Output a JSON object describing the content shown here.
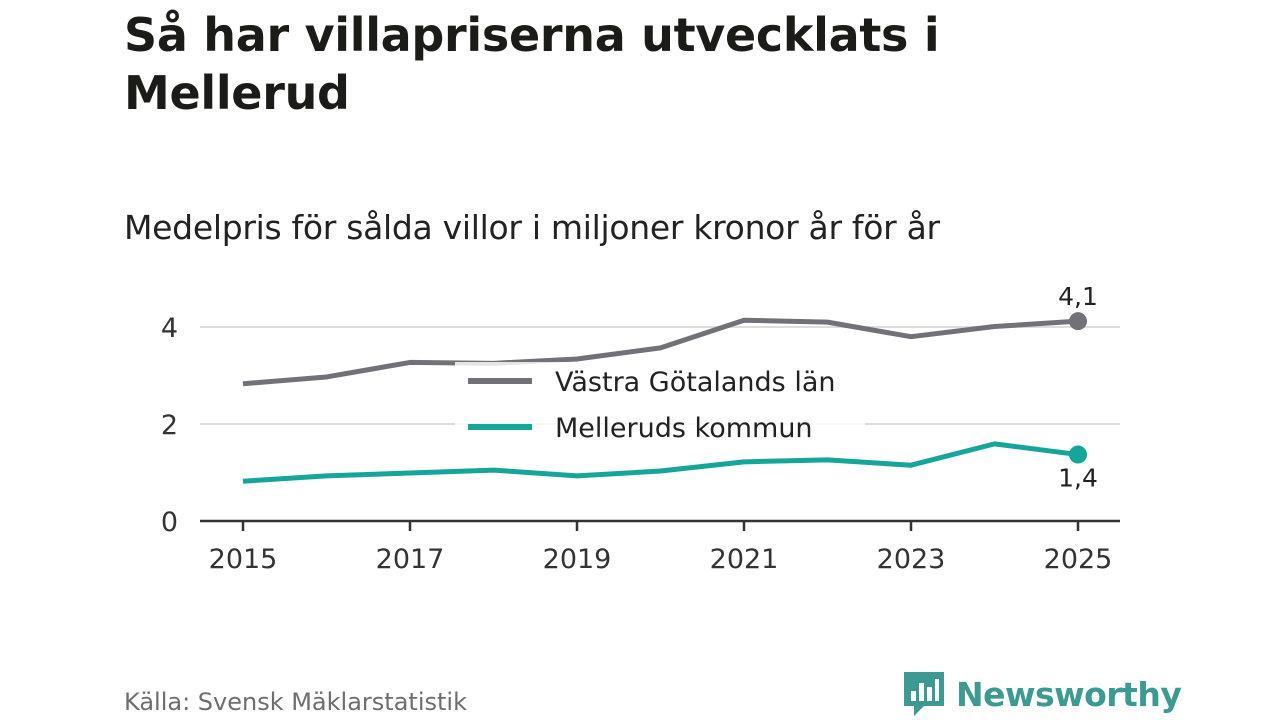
{
  "title": "Så har villapriserna utvecklats i Mellerud",
  "subtitle": "Medelpris för sålda villor i miljoner kronor år för år",
  "source": "Källa: Svensk Mäklarstatistik",
  "brand": "Newsworthy",
  "colors": {
    "vastra": "#727177",
    "mellerud": "#16a59a",
    "grid": "#dddddd",
    "axis": "#333333",
    "brand": "#3d9a92"
  },
  "chart_data": {
    "type": "line",
    "title": "Så har villapriserna utvecklats i Mellerud",
    "subtitle": "Medelpris för sålda villor i miljoner kronor år för år",
    "xlabel": "",
    "ylabel": "",
    "x": [
      2015,
      2016,
      2017,
      2018,
      2019,
      2020,
      2021,
      2022,
      2023,
      2024,
      2025
    ],
    "xticks": [
      2015,
      2017,
      2019,
      2021,
      2023,
      2025
    ],
    "xtick_labels": [
      "2015",
      "2017",
      "2019",
      "2021",
      "2023",
      "2025"
    ],
    "xlim": [
      2015,
      2025
    ],
    "ylim": [
      0,
      4.5
    ],
    "yticks": [
      0,
      2,
      4
    ],
    "ytick_labels": [
      "0",
      "2",
      "4"
    ],
    "grid": true,
    "legend_position": "center",
    "series": [
      {
        "name": "Västra Götalands län",
        "values": [
          2.83,
          2.97,
          3.27,
          3.25,
          3.34,
          3.57,
          4.14,
          4.1,
          3.8,
          4.01,
          4.12
        ],
        "end_label": "4,1"
      },
      {
        "name": "Melleruds kommun",
        "values": [
          0.82,
          0.93,
          0.99,
          1.05,
          0.93,
          1.03,
          1.22,
          1.26,
          1.15,
          1.59,
          1.37
        ],
        "end_label": "1,4"
      }
    ]
  }
}
